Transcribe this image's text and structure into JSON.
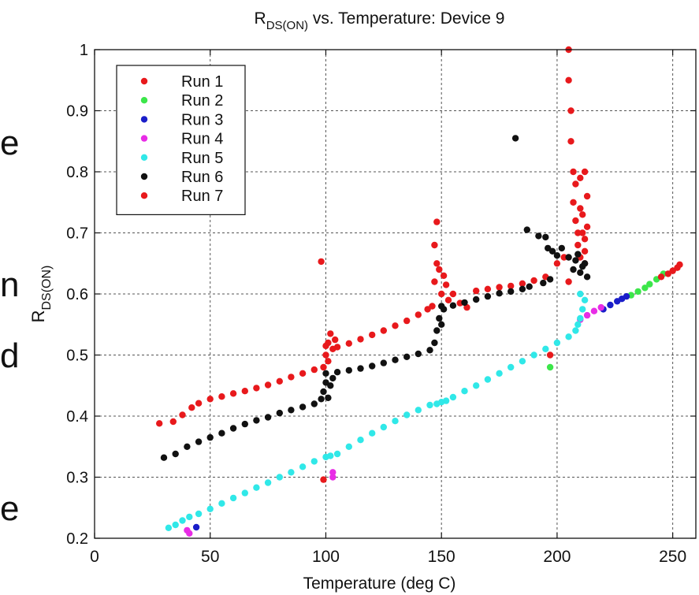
{
  "chart_data": {
    "type": "scatter",
    "title": "R",
    "title_subscript": "DS(ON)",
    "title_rest": " vs. Temperature: Device 9",
    "xlabel": "Temperature (deg C)",
    "ylabel": "R",
    "ylabel_subscript": "DS(ON)",
    "xlim": [
      0,
      260
    ],
    "ylim": [
      0.2,
      1.0
    ],
    "xticks": [
      0,
      50,
      100,
      150,
      200,
      250
    ],
    "xtick_labels": [
      "0",
      "50",
      "100",
      "150",
      "200",
      "250"
    ],
    "yticks": [
      0.2,
      0.3,
      0.4,
      0.5,
      0.6,
      0.7,
      0.8,
      0.9,
      1.0
    ],
    "ytick_labels": [
      "0.2",
      "0.3",
      "0.4",
      "0.5",
      "0.6",
      "0.7",
      "0.8",
      "0.9",
      "1"
    ],
    "grid": true,
    "legend_position": "top-left",
    "series": [
      {
        "name": "Run 1",
        "color": "#e8191c",
        "points": [
          [
            28,
            0.388
          ],
          [
            34,
            0.391
          ],
          [
            38,
            0.402
          ],
          [
            42,
            0.414
          ],
          [
            45,
            0.421
          ],
          [
            50,
            0.428
          ],
          [
            55,
            0.432
          ],
          [
            60,
            0.437
          ],
          [
            65,
            0.441
          ],
          [
            70,
            0.446
          ],
          [
            75,
            0.451
          ],
          [
            80,
            0.457
          ],
          [
            85,
            0.464
          ],
          [
            90,
            0.47
          ],
          [
            95,
            0.476
          ],
          [
            98,
            0.653
          ],
          [
            99,
            0.48
          ],
          [
            100,
            0.5
          ],
          [
            100,
            0.515
          ],
          [
            101,
            0.49
          ],
          [
            101,
            0.52
          ],
          [
            102,
            0.535
          ],
          [
            103,
            0.51
          ],
          [
            104,
            0.525
          ],
          [
            99,
            0.296
          ],
          [
            105,
            0.513
          ],
          [
            110,
            0.519
          ],
          [
            115,
            0.526
          ],
          [
            120,
            0.533
          ],
          [
            125,
            0.54
          ],
          [
            130,
            0.548
          ],
          [
            135,
            0.556
          ],
          [
            140,
            0.566
          ],
          [
            144,
            0.575
          ],
          [
            146,
            0.58
          ],
          [
            147,
            0.62
          ],
          [
            147,
            0.68
          ],
          [
            148,
            0.718
          ],
          [
            148,
            0.65
          ],
          [
            149,
            0.64
          ],
          [
            150,
            0.6
          ],
          [
            151,
            0.63
          ],
          [
            152,
            0.615
          ],
          [
            153,
            0.59
          ],
          [
            155,
            0.6
          ],
          [
            158,
            0.585
          ],
          [
            161,
            0.578
          ],
          [
            165,
            0.605
          ],
          [
            170,
            0.608
          ],
          [
            175,
            0.611
          ],
          [
            180,
            0.613
          ],
          [
            185,
            0.617
          ],
          [
            190,
            0.622
          ],
          [
            195,
            0.628
          ],
          [
            200,
            0.65
          ],
          [
            203,
            0.66
          ],
          [
            205,
            1.0
          ],
          [
            205,
            0.95
          ],
          [
            206,
            0.9
          ],
          [
            206,
            0.85
          ],
          [
            207,
            0.8
          ],
          [
            207,
            0.75
          ],
          [
            208,
            0.78
          ],
          [
            208,
            0.72
          ],
          [
            209,
            0.7
          ],
          [
            209,
            0.68
          ],
          [
            210,
            0.66
          ],
          [
            210,
            0.74
          ],
          [
            211,
            0.7
          ],
          [
            212,
            0.67
          ],
          [
            212,
            0.65
          ],
          [
            205,
            0.62
          ]
        ]
      },
      {
        "name": "Run 2",
        "color": "#3ce64a",
        "points": [
          [
            232,
            0.598
          ],
          [
            235,
            0.604
          ],
          [
            238,
            0.61
          ],
          [
            240,
            0.616
          ],
          [
            243,
            0.624
          ],
          [
            246,
            0.633
          ],
          [
            197,
            0.48
          ]
        ]
      },
      {
        "name": "Run 3",
        "color": "#1a1ec9",
        "points": [
          [
            44,
            0.218
          ],
          [
            220,
            0.575
          ],
          [
            223,
            0.582
          ],
          [
            226,
            0.588
          ],
          [
            228,
            0.592
          ],
          [
            230,
            0.596
          ]
        ]
      },
      {
        "name": "Run 4",
        "color": "#e82ce6",
        "points": [
          [
            40,
            0.213
          ],
          [
            41,
            0.208
          ],
          [
            103,
            0.308
          ],
          [
            103,
            0.3
          ],
          [
            210,
            0.558
          ],
          [
            213,
            0.565
          ],
          [
            216,
            0.572
          ],
          [
            219,
            0.578
          ]
        ]
      },
      {
        "name": "Run 5",
        "color": "#30e8e8",
        "points": [
          [
            32,
            0.217
          ],
          [
            35,
            0.222
          ],
          [
            38,
            0.229
          ],
          [
            41,
            0.235
          ],
          [
            45,
            0.24
          ],
          [
            50,
            0.248
          ],
          [
            55,
            0.257
          ],
          [
            60,
            0.266
          ],
          [
            65,
            0.274
          ],
          [
            70,
            0.283
          ],
          [
            75,
            0.291
          ],
          [
            80,
            0.3
          ],
          [
            85,
            0.308
          ],
          [
            90,
            0.317
          ],
          [
            95,
            0.326
          ],
          [
            100,
            0.333
          ],
          [
            102,
            0.335
          ],
          [
            105,
            0.338
          ],
          [
            110,
            0.35
          ],
          [
            115,
            0.361
          ],
          [
            120,
            0.372
          ],
          [
            125,
            0.382
          ],
          [
            130,
            0.392
          ],
          [
            135,
            0.402
          ],
          [
            140,
            0.41
          ],
          [
            145,
            0.418
          ],
          [
            148,
            0.42
          ],
          [
            150,
            0.423
          ],
          [
            152,
            0.425
          ],
          [
            155,
            0.431
          ],
          [
            160,
            0.441
          ],
          [
            165,
            0.45
          ],
          [
            170,
            0.46
          ],
          [
            175,
            0.47
          ],
          [
            180,
            0.48
          ],
          [
            185,
            0.49
          ],
          [
            190,
            0.5
          ],
          [
            195,
            0.51
          ],
          [
            200,
            0.52
          ],
          [
            205,
            0.53
          ],
          [
            208,
            0.54
          ],
          [
            209,
            0.55
          ],
          [
            210,
            0.56
          ],
          [
            211,
            0.575
          ],
          [
            212,
            0.59
          ],
          [
            210,
            0.6
          ]
        ]
      },
      {
        "name": "Run 6",
        "color": "#111111",
        "points": [
          [
            30,
            0.332
          ],
          [
            35,
            0.338
          ],
          [
            40,
            0.35
          ],
          [
            45,
            0.358
          ],
          [
            50,
            0.365
          ],
          [
            55,
            0.372
          ],
          [
            60,
            0.38
          ],
          [
            65,
            0.387
          ],
          [
            70,
            0.393
          ],
          [
            75,
            0.398
          ],
          [
            80,
            0.405
          ],
          [
            85,
            0.41
          ],
          [
            90,
            0.415
          ],
          [
            95,
            0.42
          ],
          [
            98,
            0.428
          ],
          [
            99,
            0.44
          ],
          [
            100,
            0.455
          ],
          [
            100,
            0.47
          ],
          [
            101,
            0.43
          ],
          [
            102,
            0.45
          ],
          [
            103,
            0.462
          ],
          [
            105,
            0.472
          ],
          [
            110,
            0.475
          ],
          [
            115,
            0.478
          ],
          [
            120,
            0.482
          ],
          [
            125,
            0.487
          ],
          [
            130,
            0.492
          ],
          [
            135,
            0.497
          ],
          [
            140,
            0.502
          ],
          [
            145,
            0.508
          ],
          [
            147,
            0.52
          ],
          [
            148,
            0.54
          ],
          [
            149,
            0.56
          ],
          [
            150,
            0.58
          ],
          [
            150,
            0.55
          ],
          [
            151,
            0.575
          ],
          [
            155,
            0.581
          ],
          [
            160,
            0.586
          ],
          [
            165,
            0.591
          ],
          [
            170,
            0.596
          ],
          [
            175,
            0.601
          ],
          [
            180,
            0.604
          ],
          [
            182,
            0.855
          ],
          [
            185,
            0.608
          ],
          [
            188,
            0.612
          ],
          [
            187,
            0.705
          ],
          [
            192,
            0.695
          ],
          [
            195,
            0.693
          ],
          [
            196,
            0.675
          ],
          [
            198,
            0.67
          ],
          [
            200,
            0.663
          ],
          [
            202,
            0.675
          ],
          [
            205,
            0.66
          ],
          [
            207,
            0.64
          ],
          [
            208,
            0.655
          ],
          [
            209,
            0.665
          ],
          [
            210,
            0.635
          ],
          [
            211,
            0.645
          ],
          [
            212,
            0.65
          ],
          [
            213,
            0.628
          ],
          [
            194,
            0.618
          ],
          [
            197,
            0.624
          ]
        ]
      },
      {
        "name": "Run 7",
        "color": "#e8191c",
        "points": [
          [
            212,
            0.69
          ],
          [
            213,
            0.71
          ],
          [
            211,
            0.73
          ],
          [
            213,
            0.76
          ],
          [
            210,
            0.79
          ],
          [
            212,
            0.8
          ],
          [
            245,
            0.628
          ],
          [
            248,
            0.633
          ],
          [
            250,
            0.638
          ],
          [
            252,
            0.643
          ],
          [
            253,
            0.648
          ],
          [
            197,
            0.5
          ]
        ]
      }
    ]
  },
  "text_fragments": [
    "e",
    "n",
    "d",
    "e"
  ]
}
